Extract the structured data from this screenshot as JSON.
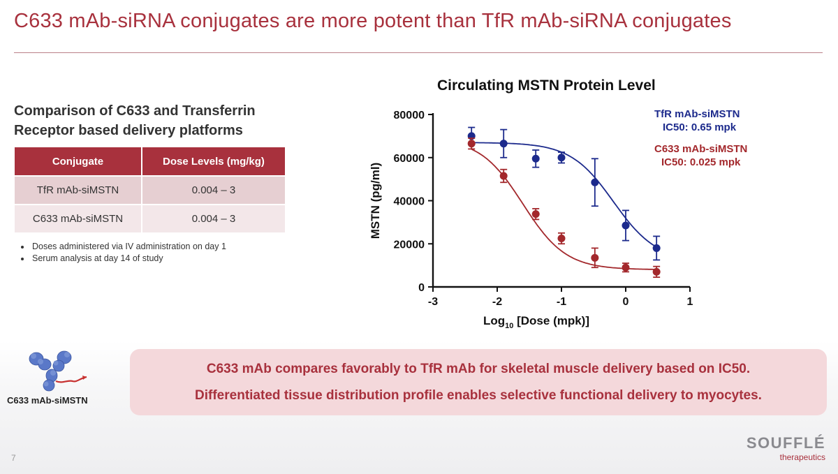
{
  "slide": {
    "title": "C633 mAb-siRNA conjugates are more potent than TfR mAb-siRNA conjugates",
    "page_number": "7"
  },
  "left": {
    "heading_line1": "Comparison of C633 and Transferrin",
    "heading_line2": "Receptor based delivery platforms",
    "table": {
      "headers": [
        "Conjugate",
        "Dose Levels (mg/kg)"
      ],
      "rows": [
        [
          "TfR mAb-siMSTN",
          "0.004 – 3"
        ],
        [
          "C633 mAb-siMSTN",
          "0.004 – 3"
        ]
      ]
    },
    "notes": [
      "Doses administered via IV administration on day 1",
      "Serum analysis at day 14 of study"
    ]
  },
  "chart_data": {
    "type": "scatter",
    "title": "Circulating MSTN Protein Level",
    "xlabel_main": "Log",
    "xlabel_sub": "10",
    "xlabel_rest": " [Dose (mpk)]",
    "ylabel": "MSTN (pg/ml)",
    "xlim": [
      -3,
      1
    ],
    "ylim": [
      0,
      80000
    ],
    "xticks": [
      -3,
      -2,
      -1,
      0,
      1
    ],
    "yticks": [
      0,
      20000,
      40000,
      60000,
      80000
    ],
    "series": [
      {
        "name": "TfR mAb-siMSTN",
        "annotation": "IC50: 0.65 mpk",
        "color": "#1c2a8c",
        "x": [
          -2.4,
          -1.9,
          -1.4,
          -1.0,
          -0.48,
          0.0,
          0.48
        ],
        "y": [
          70000,
          66500,
          59500,
          60000,
          48500,
          28500,
          18000
        ],
        "err": [
          4000,
          6500,
          4000,
          2500,
          11000,
          7000,
          5500
        ],
        "curve": {
          "top": 67000,
          "bottom": 12000,
          "log_ic50": -0.19,
          "hill": 1.3
        }
      },
      {
        "name": "C633 mAb-siMSTN",
        "annotation": "IC50: 0.025 mpk",
        "color": "#a3282c",
        "x": [
          -2.4,
          -1.9,
          -1.4,
          -1.0,
          -0.48,
          0.0,
          0.48
        ],
        "y": [
          66500,
          51500,
          33800,
          22500,
          13500,
          9000,
          7000
        ],
        "err": [
          2500,
          3000,
          2500,
          2500,
          4500,
          2000,
          2500
        ],
        "curve": {
          "top": 69000,
          "bottom": 8000,
          "log_ic50": -1.6,
          "hill": 1.3
        }
      }
    ]
  },
  "bottom": {
    "molecule_label": "C633 mAb-siMSTN",
    "callout_line1": "C633 mAb compares favorably to TfR mAb for skeletal muscle delivery based on IC50.",
    "callout_line2": "Differentiated tissue distribution profile enables selective functional delivery to myocytes."
  },
  "logo": {
    "name": "SOUFFLÉ",
    "tagline": "therapeutics"
  }
}
